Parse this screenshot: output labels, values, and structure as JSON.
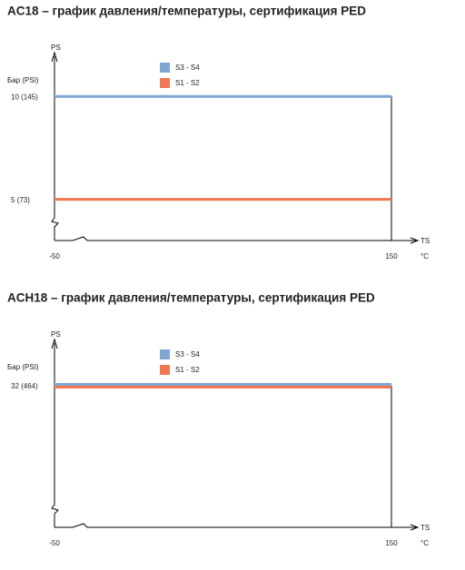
{
  "chart_data": [
    {
      "type": "line",
      "title": "AC18 – график давления/температуры, сертификация PED",
      "y_label": "PS",
      "y_unit": "Бар (PSI)",
      "x_label": "TS",
      "x_unit": "°C",
      "x": [
        -50,
        150
      ],
      "xlim": [
        -50,
        150
      ],
      "xticks": [
        -50,
        150
      ],
      "ylim": [
        3,
        11.6
      ],
      "yticks": [
        {
          "value": 10,
          "label": "10 (145)"
        },
        {
          "value": 5,
          "label": "5 (73)"
        }
      ],
      "series": [
        {
          "name": "S3 - S4",
          "color": "#7ea6d3",
          "values": [
            10,
            10
          ]
        },
        {
          "name": "S1 - S2",
          "color": "#f07850",
          "values": [
            5,
            5
          ]
        }
      ]
    },
    {
      "type": "line",
      "title": "ACH18 – график давления/температуры, сертификация PED",
      "y_label": "PS",
      "y_unit": "Бар (PSI)",
      "x_label": "TS",
      "x_unit": "°C",
      "x": [
        -50,
        150
      ],
      "xlim": [
        -50,
        150
      ],
      "xticks": [
        -50,
        150
      ],
      "ylim": [
        0,
        40
      ],
      "yticks": [
        {
          "value": 32,
          "label": "32 (464)"
        }
      ],
      "series": [
        {
          "name": "S3 - S4",
          "color": "#7ea6d3",
          "values": [
            32,
            32
          ]
        },
        {
          "name": "S1 - S2",
          "color": "#f07850",
          "values": [
            32,
            32
          ]
        }
      ]
    }
  ]
}
